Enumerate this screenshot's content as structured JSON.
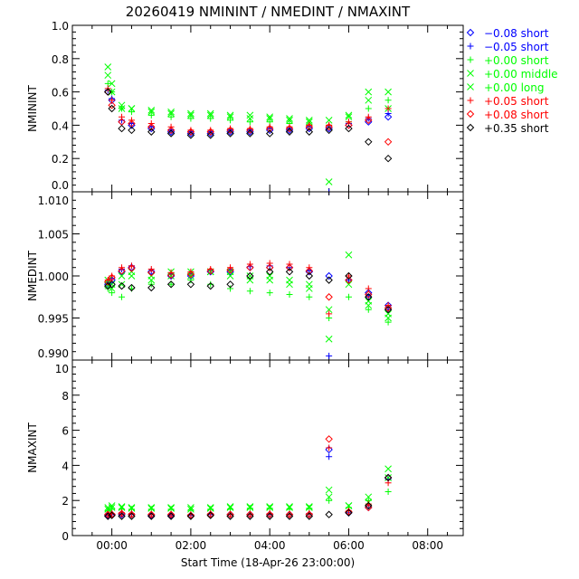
{
  "chart_data": {
    "type": "scatter",
    "title": "20260419 NMININT / NMEDINT / NMAXINT",
    "xlabel": "Start Time (18-Apr-26 23:00:00)",
    "x_unit": "hours",
    "xlim": [
      -1,
      8.9
    ],
    "x_ticks": [
      0,
      2,
      4,
      6,
      8
    ],
    "x_tick_labels": [
      "00:00",
      "02:00",
      "04:00",
      "06:00",
      "08:00"
    ],
    "legend_position": "right-top",
    "legend": [
      {
        "label": "−0.08 short",
        "color": "#0000ff",
        "marker": "diamond"
      },
      {
        "label": "−0.05 short",
        "color": "#0000ff",
        "marker": "plus"
      },
      {
        "label": "+0.00 short",
        "color": "#00ff00",
        "marker": "plus"
      },
      {
        "label": "+0.00 middle",
        "color": "#00ff00",
        "marker": "x"
      },
      {
        "label": "+0.00 long",
        "color": "#00ff00",
        "marker": "x"
      },
      {
        "label": "+0.05 short",
        "color": "#ff0000",
        "marker": "plus"
      },
      {
        "label": "+0.08 short",
        "color": "#ff0000",
        "marker": "diamond"
      },
      {
        "label": "+0.35 short",
        "color": "#000000",
        "marker": "diamond"
      }
    ],
    "x": [
      -0.1,
      0.0,
      0.25,
      0.5,
      1.0,
      1.5,
      2.0,
      2.5,
      3.0,
      3.5,
      4.0,
      4.5,
      5.0,
      5.5,
      6.0,
      6.5,
      7.0
    ],
    "panels": [
      {
        "ylabel": "NMININT",
        "ylim": [
          0.0,
          1.0
        ],
        "y_ticks": [
          0.0,
          0.2,
          0.4,
          0.6,
          0.8,
          1.0
        ],
        "y_tick_labels": [
          "0.0",
          "0.2",
          "0.4",
          "0.6",
          "0.8",
          "1.0"
        ],
        "series": [
          [
            0.6,
            0.55,
            0.42,
            0.4,
            0.38,
            0.36,
            0.35,
            0.35,
            0.36,
            0.36,
            0.37,
            0.37,
            0.38,
            0.38,
            0.4,
            0.42,
            0.45
          ],
          [
            0.61,
            0.56,
            0.43,
            0.41,
            0.39,
            0.37,
            0.36,
            0.36,
            0.37,
            0.37,
            0.38,
            0.38,
            0.39,
            0.0,
            0.41,
            0.44,
            0.47
          ],
          [
            0.65,
            0.6,
            0.5,
            0.48,
            0.46,
            0.45,
            0.44,
            0.44,
            0.43,
            0.42,
            0.42,
            0.41,
            0.4,
            0.4,
            0.42,
            0.5,
            0.55
          ],
          [
            0.7,
            0.65,
            0.52,
            0.5,
            0.48,
            0.47,
            0.46,
            0.46,
            0.45,
            0.44,
            0.44,
            0.43,
            0.42,
            0.43,
            0.45,
            0.55,
            0.6
          ],
          [
            0.75,
            0.6,
            0.5,
            0.5,
            0.49,
            0.48,
            0.47,
            0.47,
            0.46,
            0.46,
            0.45,
            0.44,
            0.43,
            0.06,
            0.46,
            0.6,
            0.5
          ],
          [
            0.62,
            0.55,
            0.45,
            0.43,
            0.41,
            0.39,
            0.37,
            0.37,
            0.38,
            0.38,
            0.39,
            0.39,
            0.4,
            0.4,
            0.42,
            0.45,
            0.5
          ],
          [
            0.6,
            0.52,
            0.42,
            0.41,
            0.39,
            0.37,
            0.36,
            0.36,
            0.37,
            0.37,
            0.38,
            0.38,
            0.39,
            0.39,
            0.4,
            0.43,
            0.3
          ],
          [
            0.6,
            0.5,
            0.38,
            0.37,
            0.36,
            0.35,
            0.34,
            0.34,
            0.35,
            0.35,
            0.35,
            0.36,
            0.36,
            0.37,
            0.38,
            0.3,
            0.2
          ]
        ]
      },
      {
        "ylabel": "NMEDINT",
        "ylim": [
          0.99,
          1.01
        ],
        "y_ticks": [
          0.99,
          0.995,
          1.0,
          1.005,
          1.01
        ],
        "y_tick_labels": [
          "0.990",
          "0.995",
          "1.000",
          "1.005",
          "1.010"
        ],
        "series": [
          [
            0.999,
            0.9995,
            1.0005,
            1.001,
            1.0005,
            1.0,
            1.0,
            1.0005,
            1.0005,
            1.001,
            1.001,
            1.001,
            1.0005,
            1.0,
            0.9995,
            0.998,
            0.9965
          ],
          [
            0.9992,
            0.9997,
            1.0008,
            1.0012,
            1.0006,
            1.0002,
            1.0001,
            1.0006,
            1.0007,
            1.0011,
            1.0012,
            1.001,
            1.0006,
            0.9905,
            0.9995,
            0.9975,
            0.996
          ],
          [
            0.9985,
            0.998,
            0.9975,
            0.9985,
            0.999,
            0.999,
            0.9995,
            0.999,
            0.9985,
            0.9982,
            0.998,
            0.9978,
            0.9975,
            0.995,
            0.9975,
            0.996,
            0.9945
          ],
          [
            0.999,
            0.9985,
            0.999,
            1.0,
            0.9995,
            1.0,
            1.0,
            1.0005,
            1.0,
            0.9995,
            0.9995,
            0.999,
            0.9985,
            0.996,
            0.999,
            0.997,
            0.9955
          ],
          [
            0.9995,
            0.999,
            1.0,
            1.0005,
            1.0,
            1.0005,
            1.0005,
            1.0005,
            1.0005,
            1.0,
            1.0,
            0.9995,
            0.999,
            0.9925,
            1.0025,
            0.9965,
            0.995
          ],
          [
            0.9995,
            1.0,
            1.001,
            1.0012,
            1.0008,
            1.0004,
            1.0005,
            1.0008,
            1.001,
            1.0014,
            1.0015,
            1.0014,
            1.001,
            0.9955,
            1.0,
            0.9985,
            0.9965
          ],
          [
            0.9993,
            0.9998,
            1.0006,
            1.0009,
            1.0004,
            1.0001,
            1.0002,
            1.0006,
            1.0007,
            1.001,
            1.001,
            1.001,
            1.0006,
            0.9975,
            0.9995,
            0.9978,
            0.9962
          ],
          [
            0.9988,
            0.999,
            0.9988,
            0.9986,
            0.9986,
            0.999,
            0.999,
            0.9988,
            0.999,
            1.0,
            1.0005,
            1.0005,
            1.0,
            0.9995,
            1.0,
            0.9975,
            0.996
          ]
        ]
      },
      {
        "ylabel": "NMAXINT",
        "ylim": [
          0,
          10
        ],
        "y_ticks": [
          0,
          2,
          4,
          6,
          8,
          10
        ],
        "y_tick_labels": [
          "0",
          "2",
          "4",
          "6",
          "8",
          "10"
        ],
        "series": [
          [
            1.15,
            1.2,
            1.2,
            1.2,
            1.15,
            1.15,
            1.15,
            1.2,
            1.2,
            1.2,
            1.2,
            1.2,
            1.2,
            4.9,
            1.3,
            1.6,
            3.3
          ],
          [
            1.15,
            1.2,
            1.2,
            1.2,
            1.2,
            1.15,
            1.15,
            1.2,
            1.2,
            1.2,
            1.2,
            1.2,
            1.25,
            4.5,
            1.3,
            1.7,
            3.2
          ],
          [
            1.4,
            1.5,
            1.5,
            1.5,
            1.5,
            1.5,
            1.45,
            1.5,
            1.5,
            1.55,
            1.55,
            1.5,
            1.55,
            2.0,
            1.6,
            2.0,
            2.5
          ],
          [
            1.5,
            1.6,
            1.6,
            1.55,
            1.55,
            1.55,
            1.5,
            1.55,
            1.6,
            1.6,
            1.6,
            1.6,
            1.6,
            2.2,
            1.7,
            1.9,
            3.8
          ],
          [
            1.6,
            1.7,
            1.65,
            1.6,
            1.6,
            1.6,
            1.6,
            1.6,
            1.65,
            1.65,
            1.65,
            1.65,
            1.65,
            2.6,
            1.7,
            2.2,
            3.3
          ],
          [
            1.2,
            1.25,
            1.3,
            1.25,
            1.2,
            1.2,
            1.2,
            1.25,
            1.2,
            1.2,
            1.25,
            1.2,
            1.25,
            5.0,
            1.4,
            1.8,
            3.0
          ],
          [
            1.2,
            1.2,
            1.25,
            1.2,
            1.2,
            1.2,
            1.15,
            1.2,
            1.2,
            1.2,
            1.2,
            1.2,
            1.2,
            5.5,
            1.35,
            1.6,
            3.3
          ],
          [
            1.1,
            1.15,
            1.1,
            1.1,
            1.1,
            1.1,
            1.1,
            1.15,
            1.1,
            1.1,
            1.1,
            1.1,
            1.1,
            1.2,
            1.3,
            1.7,
            3.3
          ]
        ]
      }
    ]
  }
}
